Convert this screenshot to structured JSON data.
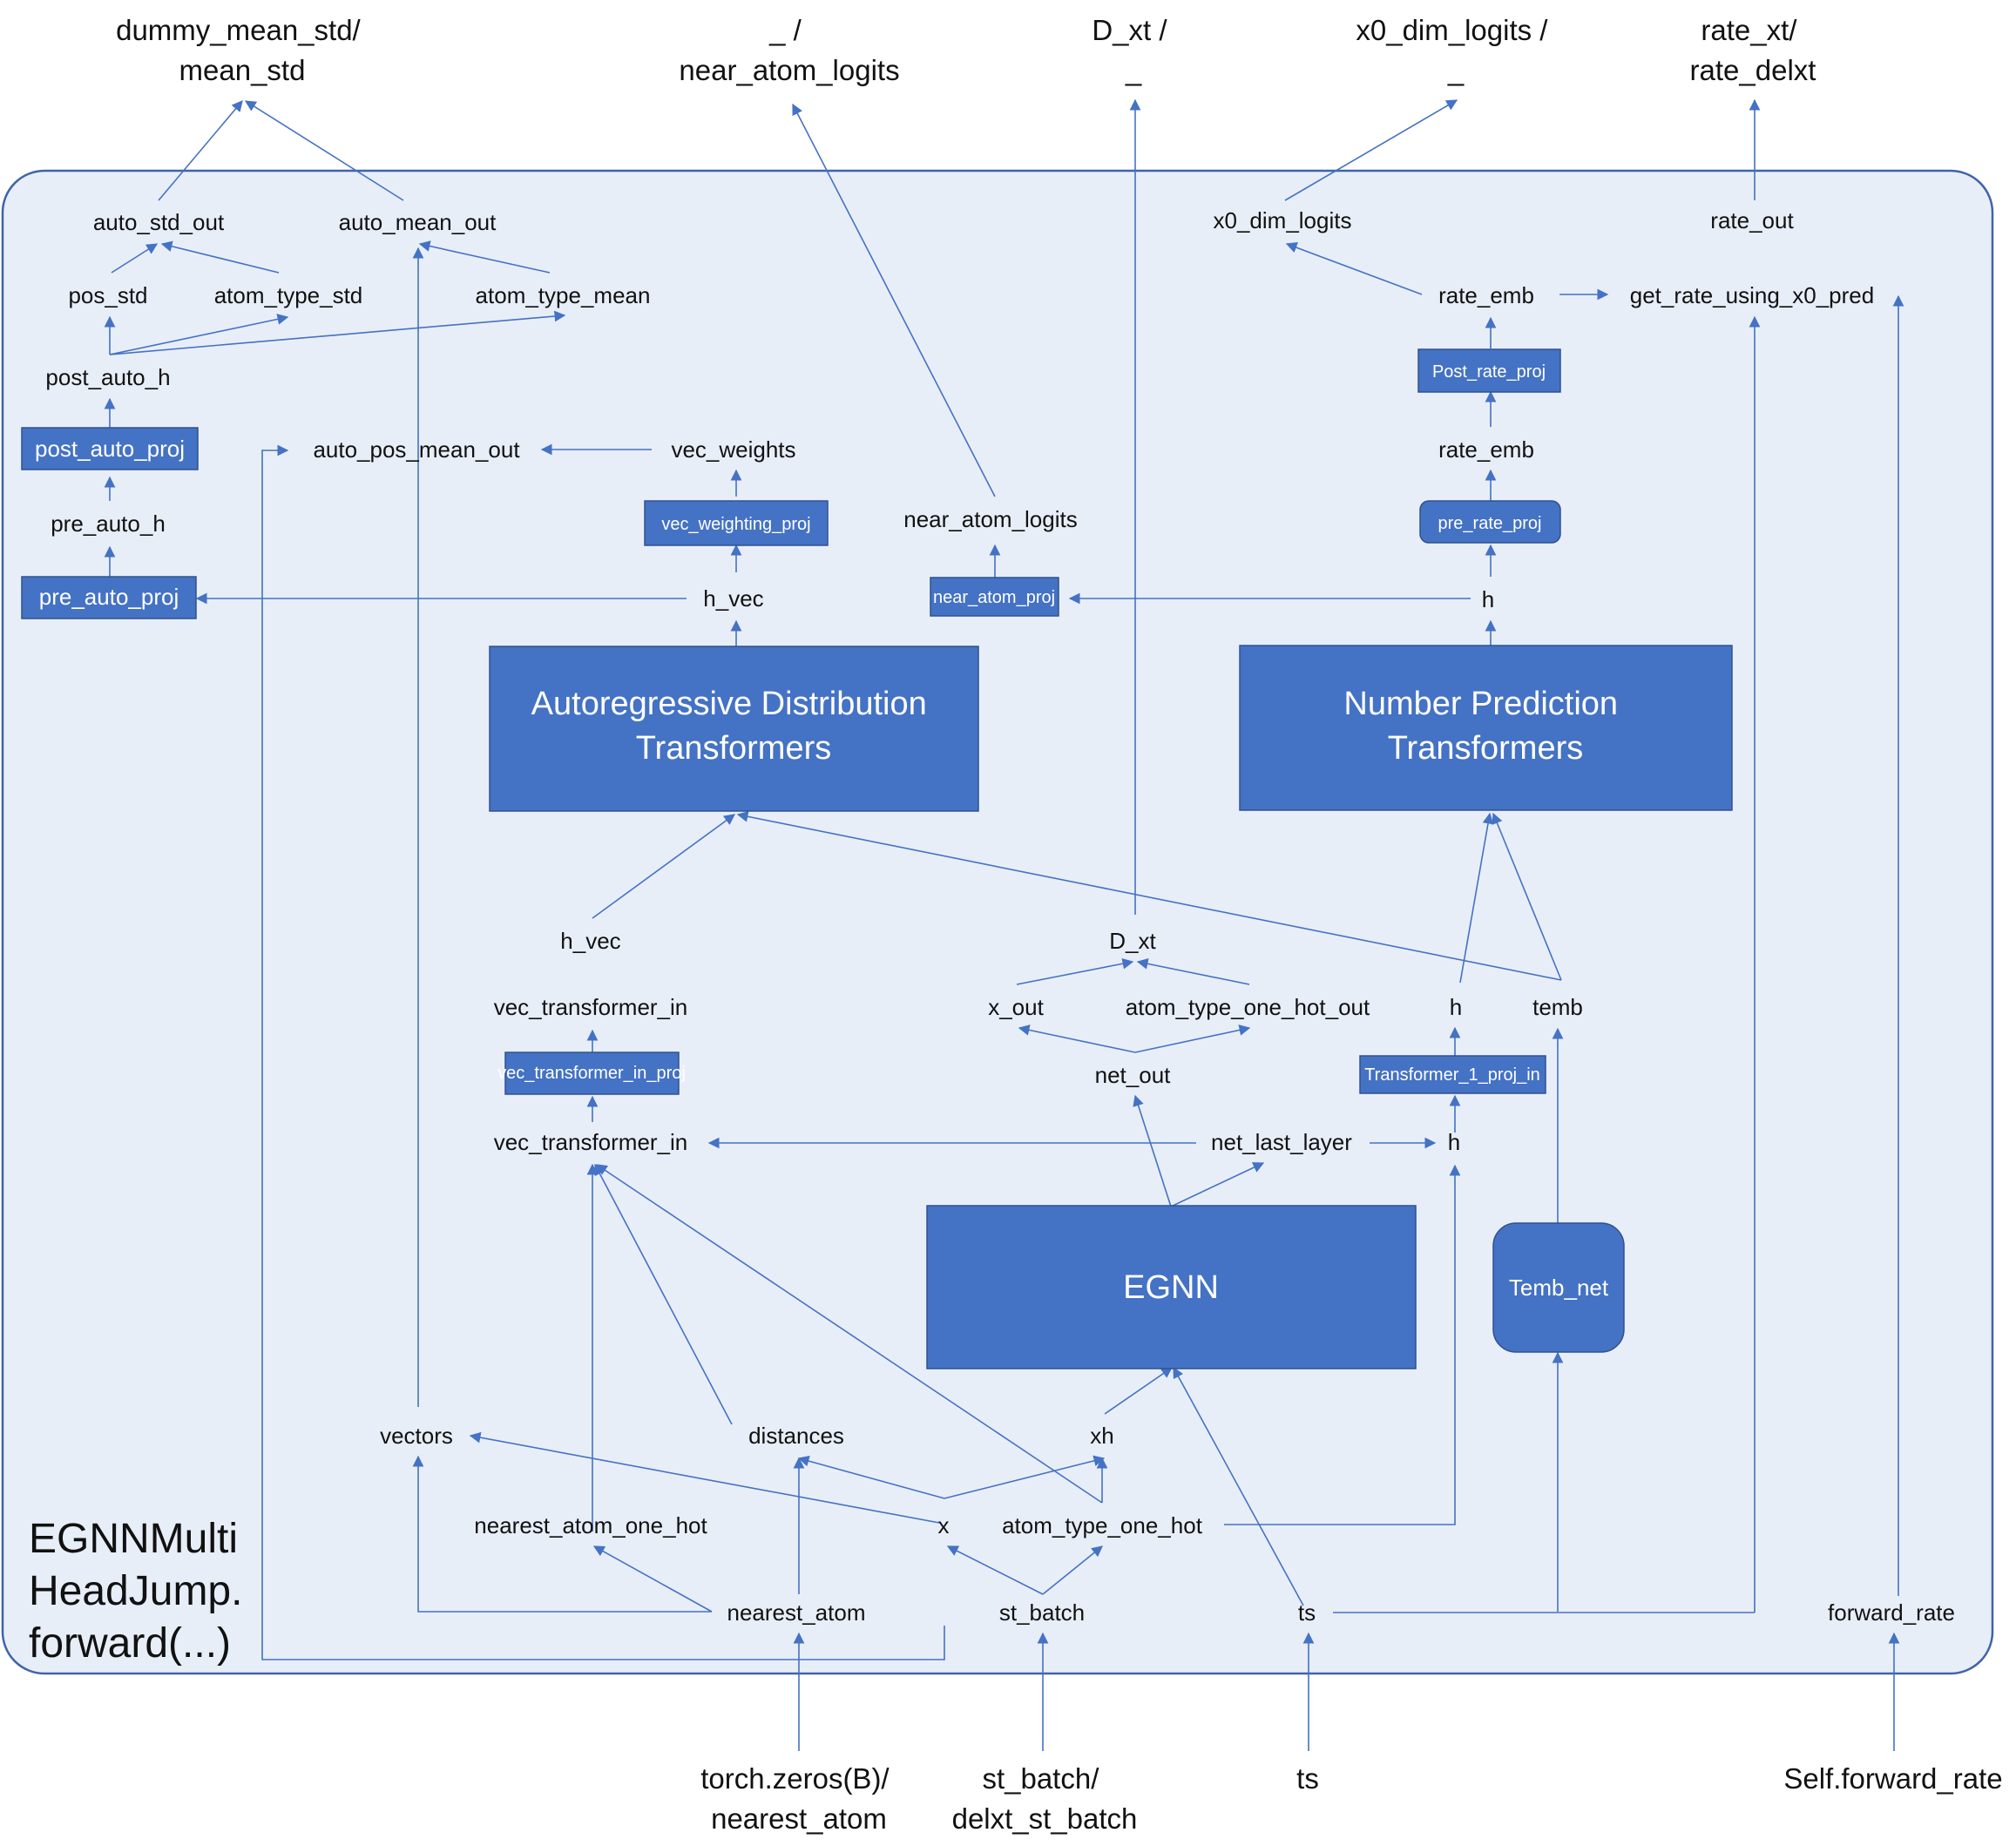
{
  "frame_title": [
    "EGNNMulti",
    "HeadJump.",
    "forward(...)"
  ],
  "outputs": {
    "mean_std": [
      "dummy_mean_std/",
      "mean_std"
    ],
    "near_atom_logits": [
      "_ /",
      "near_atom_logits"
    ],
    "d_xt": [
      "D_xt /",
      "_"
    ],
    "x0_dim_logits": [
      "x0_dim_logits /",
      "_"
    ],
    "rate": [
      "rate_xt/",
      "rate_delxt"
    ]
  },
  "inputs": {
    "nearest_atom": [
      "torch.zeros(B)/",
      "nearest_atom"
    ],
    "st_batch": [
      "st_batch/",
      "delxt_st_batch"
    ],
    "ts": [
      "ts"
    ],
    "forward_rate": [
      "Self.forward_rate"
    ]
  },
  "labels": {
    "auto_std_out": "auto_std_out",
    "auto_mean_out": "auto_mean_out",
    "pos_std": "pos_std",
    "atom_type_std": "atom_type_std",
    "atom_type_mean": "atom_type_mean",
    "post_auto_h": "post_auto_h",
    "auto_pos_mean_out": "auto_pos_mean_out",
    "vec_weights": "vec_weights",
    "pre_auto_h": "pre_auto_h",
    "h_vec_top": "h_vec",
    "near_atom_logits": "near_atom_logits",
    "x0_dim_logits": "x0_dim_logits",
    "rate_out": "rate_out",
    "rate_emb_top": "rate_emb",
    "get_rate": "get_rate_using_x0_pred",
    "rate_emb_mid": "rate_emb",
    "h_top": "h",
    "h_vec_mid": "h_vec",
    "d_xt": "D_xt",
    "vec_transformer_in_a": "vec_transformer_in",
    "x_out": "x_out",
    "atom_type_one_hot_out": "atom_type_one_hot_out",
    "h_mid": "h",
    "temb": "temb",
    "net_out": "net_out",
    "vec_transformer_in_b": "vec_transformer_in",
    "net_last_layer": "net_last_layer",
    "h_low": "h",
    "vectors": "vectors",
    "distances": "distances",
    "xh": "xh",
    "nearest_atom_one_hot": "nearest_atom_one_hot",
    "x": "x",
    "atom_type_one_hot": "atom_type_one_hot",
    "nearest_atom": "nearest_atom",
    "st_batch": "st_batch",
    "ts": "ts",
    "forward_rate": "forward_rate"
  },
  "blocks": {
    "post_auto_proj": "post_auto_proj",
    "pre_auto_proj": "pre_auto_proj",
    "vec_weighting_proj": "vec_weighting_proj",
    "near_atom_proj": "near_atom_proj",
    "post_rate_proj": "Post_rate_proj",
    "pre_rate_proj": "pre_rate_proj",
    "autoregressive": [
      "Autoregressive Distribution",
      "Transformers"
    ],
    "number_prediction": [
      "Number Prediction",
      "Transformers"
    ],
    "vec_transformer_in_proj": "vec_transformer_in_proj",
    "transformer_1_proj_in": "Transformer_1_proj_in",
    "egnn": "EGNN",
    "temb_net": "Temb_net"
  },
  "colors": {
    "frame_fill": "#e8eef8",
    "frame_stroke": "#3f64a8",
    "block_fill": "#4472c4",
    "line": "#4472c4"
  }
}
